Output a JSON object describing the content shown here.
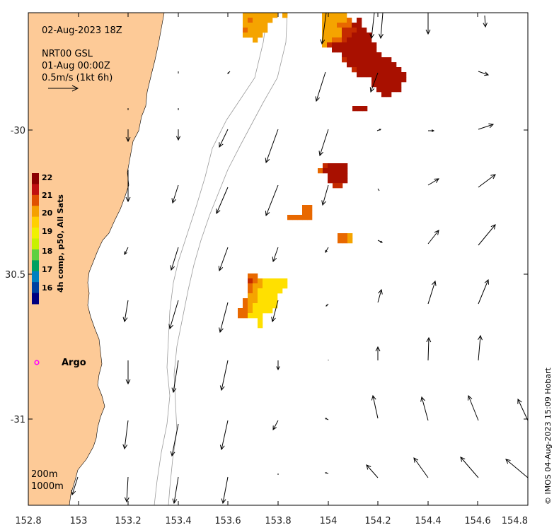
{
  "header": {
    "date": "02-Aug-2023 18Z",
    "source": "NRT00 GSL",
    "source_time": "01-Aug 00:00Z",
    "scale_label": "0.5m/s (1kt 6h)"
  },
  "axes": {
    "x_ticks": [
      "152.8",
      "153",
      "153.2",
      "153.4",
      "153.6",
      "153.8",
      "154",
      "154.2",
      "154.4",
      "154.6",
      "154.8"
    ],
    "y_ticks": [
      "-30",
      "30.5",
      "-31"
    ]
  },
  "colorbar": {
    "title": "4h comp, p50, All Sats",
    "ticks": [
      "22",
      "21",
      "20",
      "19",
      "18",
      "17",
      "16"
    ],
    "colors": [
      "#8b0000",
      "#c01010",
      "#e05000",
      "#f5a000",
      "#ffd000",
      "#f0f000",
      "#c8f000",
      "#60d040",
      "#00a060",
      "#0080c0",
      "#0040a0",
      "#000080"
    ]
  },
  "legend": {
    "depth_200": "200m",
    "depth_1000": "1000m"
  },
  "argo": {
    "label": "Argo"
  },
  "credit": "© IMOS 04-Aug-2023 15:09 Hobart",
  "colors": {
    "land": "#fdca97",
    "sst_dark": "#a81000",
    "sst_red": "#c42a00",
    "sst_orange": "#e86800",
    "sst_amber": "#f5a400",
    "sst_yellow": "#ffe000",
    "argo": "#ff00ff"
  }
}
